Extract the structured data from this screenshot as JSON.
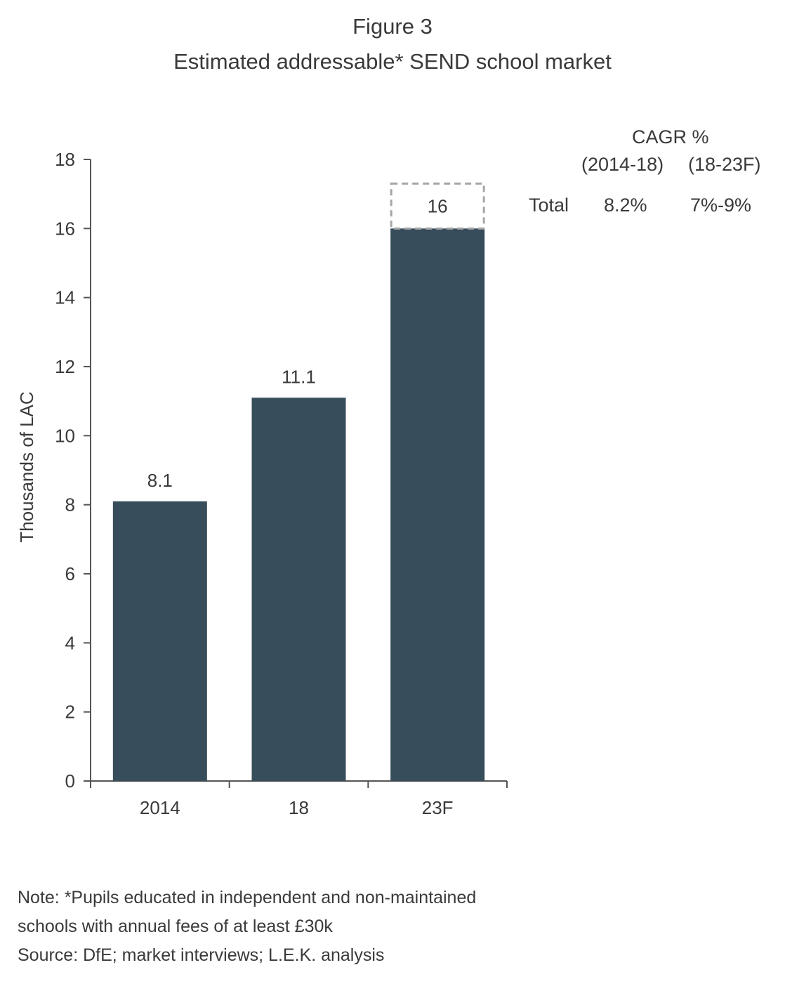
{
  "figure_label": "Figure 3",
  "chart_data": {
    "type": "bar",
    "title": "Estimated addressable* SEND school market",
    "ylabel": "Thousands of LAC",
    "xlabel": "",
    "ylim": [
      0,
      18
    ],
    "yticks": [
      0,
      2,
      4,
      6,
      8,
      10,
      12,
      14,
      16,
      18
    ],
    "categories": [
      "2014",
      "18",
      "23F"
    ],
    "values": [
      8.1,
      11.1,
      16
    ],
    "data_labels": [
      "8.1",
      "11.1",
      "16"
    ],
    "forecast_range_top": 17.3,
    "bar_color": "#384d5b",
    "range_box_color": "#a6a6a6",
    "grid": false,
    "legend": "none"
  },
  "cagr_table": {
    "header": "CAGR %",
    "period_1": "(2014-18)",
    "period_2": "(18-23F)",
    "row_label": "Total",
    "value_1": "8.2%",
    "value_2": "7%-9%"
  },
  "notes": {
    "note_line_1": "Note: *Pupils educated in independent and non-maintained",
    "note_line_2": "schools with annual fees of at least £30k",
    "source": "Source: DfE; market interviews; L.E.K. analysis"
  }
}
